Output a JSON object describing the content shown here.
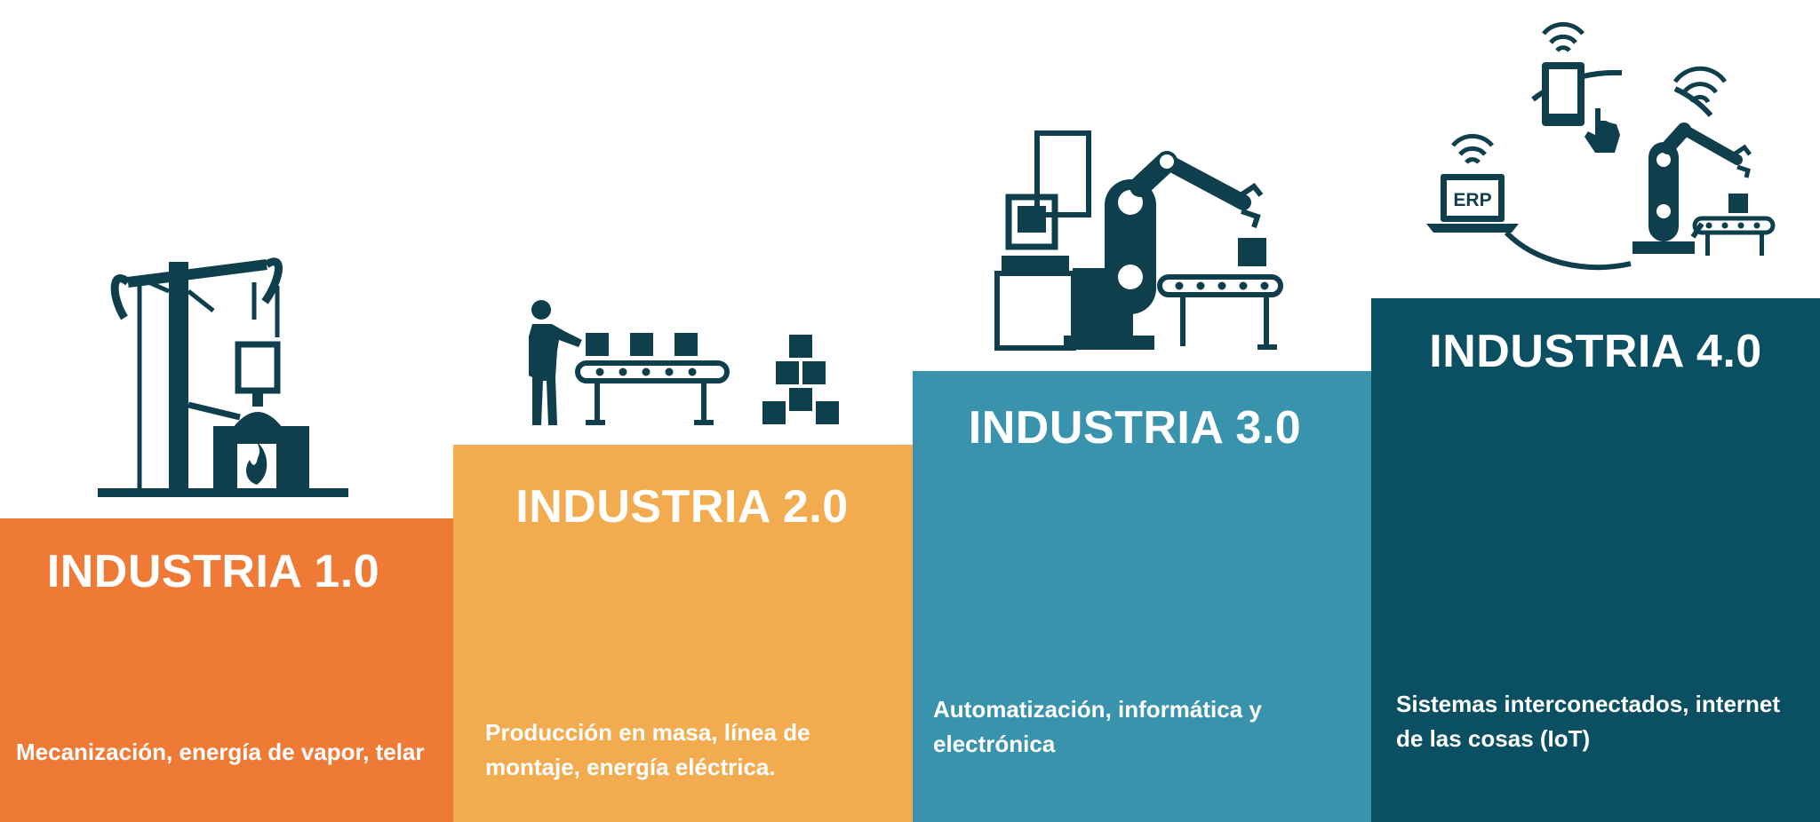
{
  "steps": [
    {
      "title": "INDUSTRIA 1.0",
      "description": "Mecanización, energía de vapor, telar",
      "color": "#ef7a36",
      "icon": "pumpjack-furnace-icon"
    },
    {
      "title": "INDUSTRIA 2.0",
      "description": "Producción en masa, línea de montaje, energía eléctrica.",
      "color": "#f2ac4f",
      "icon": "assembly-line-icon"
    },
    {
      "title": "INDUSTRIA 3.0",
      "description": "Automatización, informática y electrónica",
      "color": "#3a93ad",
      "icon": "robot-arm-computer-icon"
    },
    {
      "title": "INDUSTRIA 4.0",
      "description": "Sistemas interconectados, internet de las cosas (IoT)",
      "color": "#0b4f63",
      "icon": "iot-network-icon",
      "laptop_label": "ERP"
    }
  ],
  "icon_color": "#0f3f4c"
}
